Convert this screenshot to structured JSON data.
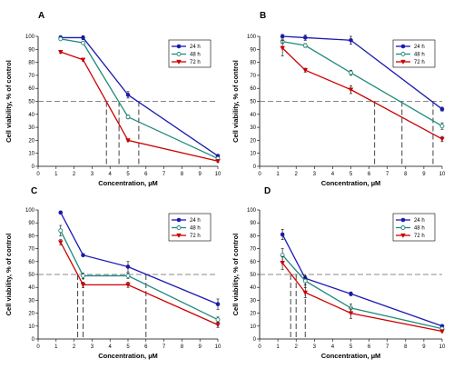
{
  "chart_data": [
    {
      "panel": "A",
      "type": "line",
      "xlabel": "Concentration, µM",
      "ylabel": "Cell viability, % of control",
      "xlim": [
        0,
        10
      ],
      "ylim": [
        0,
        100
      ],
      "xticks": [
        0,
        1,
        2,
        3,
        4,
        5,
        6,
        7,
        8,
        9,
        10
      ],
      "yticks": [
        0,
        10,
        20,
        30,
        40,
        50,
        60,
        70,
        80,
        90,
        100
      ],
      "legend_position": "top-right",
      "ic50_reference_y": 50,
      "ic50_x": [
        3.8,
        4.5,
        5.6
      ],
      "series": [
        {
          "name": "24 h",
          "color": "#1a1ab0",
          "marker": "circle-filled",
          "x": [
            1.25,
            2.5,
            5,
            10
          ],
          "y": [
            99,
            99,
            55,
            8
          ],
          "err": [
            1.5,
            1.5,
            2.5,
            1
          ]
        },
        {
          "name": "48 h",
          "color": "#1f8a7a",
          "marker": "circle-open",
          "x": [
            1.25,
            2.5,
            5,
            10
          ],
          "y": [
            98,
            95,
            38,
            6
          ],
          "err": [
            1,
            1,
            1.5,
            1
          ]
        },
        {
          "name": "72 h",
          "color": "#cc0000",
          "marker": "triangle-down",
          "x": [
            1.25,
            2.5,
            5,
            10
          ],
          "y": [
            88,
            82,
            20,
            4
          ],
          "err": [
            1,
            1,
            1,
            1
          ]
        }
      ]
    },
    {
      "panel": "B",
      "type": "line",
      "xlabel": "Concentration, µM",
      "ylabel": "Cell viability, % of control",
      "xlim": [
        0,
        10
      ],
      "ylim": [
        0,
        100
      ],
      "xticks": [
        0,
        1,
        2,
        3,
        4,
        5,
        6,
        7,
        8,
        9,
        10
      ],
      "yticks": [
        0,
        10,
        20,
        30,
        40,
        50,
        60,
        70,
        80,
        90,
        100
      ],
      "legend_position": "top-right",
      "ic50_reference_y": 50,
      "ic50_x": [
        6.3,
        7.8,
        9.5
      ],
      "series": [
        {
          "name": "24 h",
          "color": "#1a1ab0",
          "marker": "circle-filled",
          "x": [
            1.25,
            2.5,
            5,
            10
          ],
          "y": [
            100,
            99,
            97,
            44
          ],
          "err": [
            1.5,
            2,
            3,
            1.5
          ]
        },
        {
          "name": "48 h",
          "color": "#1f8a7a",
          "marker": "circle-open",
          "x": [
            1.25,
            2.5,
            5,
            10
          ],
          "y": [
            96,
            93,
            72,
            31
          ],
          "err": [
            1.5,
            1.5,
            2,
            2.5
          ]
        },
        {
          "name": "72 h",
          "color": "#cc0000",
          "marker": "triangle-down",
          "x": [
            1.25,
            2.5,
            5,
            10
          ],
          "y": [
            91,
            74,
            59,
            21
          ],
          "err": [
            6,
            1.5,
            3,
            2
          ]
        }
      ]
    },
    {
      "panel": "C",
      "type": "line",
      "xlabel": "Concentration, µM",
      "ylabel": "Cell viability, % of control",
      "xlim": [
        0,
        10
      ],
      "ylim": [
        0,
        100
      ],
      "xticks": [
        0,
        1,
        2,
        3,
        4,
        5,
        6,
        7,
        8,
        9,
        10
      ],
      "yticks": [
        0,
        10,
        20,
        30,
        40,
        50,
        60,
        70,
        80,
        90,
        100
      ],
      "legend_position": "top-right",
      "ic50_reference_y": 50,
      "ic50_x": [
        2.2,
        2.5,
        6.0
      ],
      "series": [
        {
          "name": "24 h",
          "color": "#1a1ab0",
          "marker": "circle-filled",
          "x": [
            1.25,
            2.5,
            5,
            10
          ],
          "y": [
            98,
            65,
            56,
            27
          ],
          "err": [
            1,
            1,
            4,
            4
          ]
        },
        {
          "name": "48 h",
          "color": "#1f8a7a",
          "marker": "circle-open",
          "x": [
            1.25,
            2.5,
            5,
            10
          ],
          "y": [
            84,
            49,
            49,
            15
          ],
          "err": [
            4,
            2,
            2,
            2
          ]
        },
        {
          "name": "72 h",
          "color": "#cc0000",
          "marker": "triangle-down",
          "x": [
            1.25,
            2.5,
            5,
            10
          ],
          "y": [
            75,
            42,
            42,
            11
          ],
          "err": [
            2,
            2,
            2,
            2
          ]
        }
      ]
    },
    {
      "panel": "D",
      "type": "line",
      "xlabel": "Concentration, µM",
      "ylabel": "Cell viability, % of control",
      "xlim": [
        0,
        10
      ],
      "ylim": [
        0,
        100
      ],
      "xticks": [
        0,
        1,
        2,
        3,
        4,
        5,
        6,
        7,
        8,
        9,
        10
      ],
      "yticks": [
        0,
        10,
        20,
        30,
        40,
        50,
        60,
        70,
        80,
        90,
        100
      ],
      "legend_position": "top-right",
      "ic50_reference_y": 50,
      "ic50_x": [
        1.7,
        2.0,
        2.5
      ],
      "series": [
        {
          "name": "24 h",
          "color": "#1a1ab0",
          "marker": "circle-filled",
          "x": [
            1.25,
            2.5,
            5,
            10
          ],
          "y": [
            81,
            47,
            35,
            10
          ],
          "err": [
            4,
            2,
            1.5,
            1
          ]
        },
        {
          "name": "48 h",
          "color": "#1f8a7a",
          "marker": "circle-open",
          "x": [
            1.25,
            2.5,
            5,
            10
          ],
          "y": [
            65,
            45,
            24,
            8
          ],
          "err": [
            5,
            3,
            3,
            1
          ]
        },
        {
          "name": "72 h",
          "color": "#cc0000",
          "marker": "triangle-down",
          "x": [
            1.25,
            2.5,
            5,
            10
          ],
          "y": [
            59,
            36,
            20,
            6
          ],
          "err": [
            5,
            4,
            4,
            1
          ]
        }
      ]
    }
  ]
}
